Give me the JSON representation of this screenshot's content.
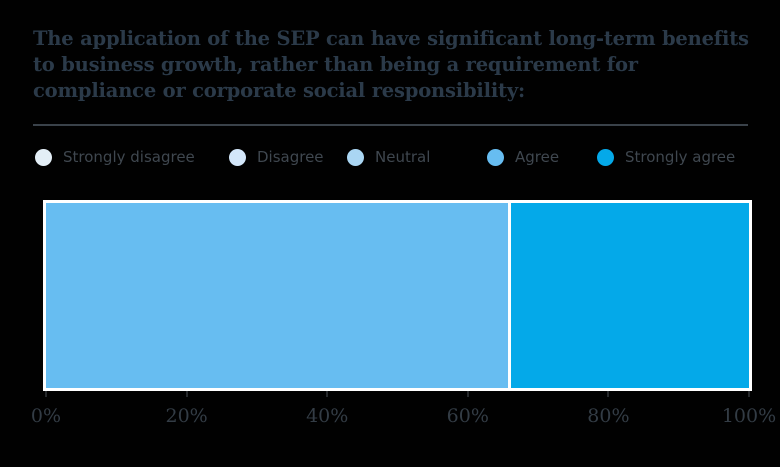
{
  "title": "The application of the SEP can have significant long-term benefits to business growth, rather than being a requirement for compliance or corporate social responsibility:",
  "legend": {
    "items": [
      {
        "label": "Strongly disagree",
        "color": "#e3eef6"
      },
      {
        "label": "Disagree",
        "color": "#d3e7fa"
      },
      {
        "label": "Neutral",
        "color": "#aad6f3"
      },
      {
        "label": "Agree",
        "color": "#67bdf1"
      },
      {
        "label": "Strongly agree",
        "color": "#04a9e9"
      }
    ]
  },
  "chart_data": {
    "type": "bar",
    "orientation": "horizontal",
    "stacked": true,
    "title": "The application of the SEP can have significant long-term benefits to business growth, rather than being a requirement for compliance or corporate social responsibility:",
    "categories": [
      ""
    ],
    "series": [
      {
        "name": "Strongly disagree",
        "values": [
          0
        ],
        "color": "#e3eef6"
      },
      {
        "name": "Disagree",
        "values": [
          0
        ],
        "color": "#d3e7fa"
      },
      {
        "name": "Neutral",
        "values": [
          0
        ],
        "color": "#aad6f3"
      },
      {
        "name": "Agree",
        "values": [
          66
        ],
        "color": "#67bdf1"
      },
      {
        "name": "Strongly agree",
        "values": [
          34
        ],
        "color": "#04a9e9"
      }
    ],
    "xlabel": "",
    "ylabel": "",
    "xlim": [
      0,
      100
    ],
    "x_tick_labels": [
      "0%",
      "20%",
      "40%",
      "60%",
      "80%",
      "100%"
    ],
    "grid": false,
    "legend_position": "top"
  },
  "colors": {
    "background": "#010101",
    "title_text": "#2b3a49",
    "divider": "#3a424a",
    "legend_text": "#3f474f",
    "axis_text": "#333c45",
    "bar_border": "#ffffff"
  }
}
